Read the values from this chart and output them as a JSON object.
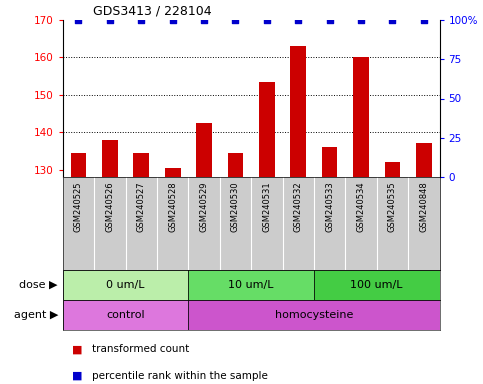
{
  "title": "GDS3413 / 228104",
  "samples": [
    "GSM240525",
    "GSM240526",
    "GSM240527",
    "GSM240528",
    "GSM240529",
    "GSM240530",
    "GSM240531",
    "GSM240532",
    "GSM240533",
    "GSM240534",
    "GSM240535",
    "GSM240848"
  ],
  "bar_values": [
    134.5,
    138.0,
    134.5,
    130.5,
    142.5,
    134.5,
    153.5,
    163.0,
    136.0,
    160.0,
    132.0,
    137.0
  ],
  "percentile_values": [
    100,
    100,
    100,
    100,
    100,
    100,
    100,
    100,
    100,
    100,
    100,
    100
  ],
  "bar_color": "#cc0000",
  "percentile_color": "#0000cc",
  "ylim_left": [
    128,
    170
  ],
  "ylim_right": [
    0,
    100
  ],
  "yticks_left": [
    130,
    140,
    150,
    160,
    170
  ],
  "yticks_right": [
    0,
    25,
    50,
    75,
    100
  ],
  "gridlines": [
    140,
    150,
    160
  ],
  "dose_groups": [
    {
      "label": "0 um/L",
      "start": 0,
      "end": 4,
      "color": "#bbeeaa"
    },
    {
      "label": "10 um/L",
      "start": 4,
      "end": 8,
      "color": "#66dd66"
    },
    {
      "label": "100 um/L",
      "start": 8,
      "end": 12,
      "color": "#44cc44"
    }
  ],
  "agent_groups": [
    {
      "label": "control",
      "start": 0,
      "end": 4,
      "color": "#dd77dd"
    },
    {
      "label": "homocysteine",
      "start": 4,
      "end": 12,
      "color": "#cc55cc"
    }
  ],
  "dose_label": "dose",
  "agent_label": "agent",
  "legend_bar_label": "transformed count",
  "legend_pct_label": "percentile rank within the sample",
  "label_bg_color": "#cccccc",
  "n_samples": 12
}
